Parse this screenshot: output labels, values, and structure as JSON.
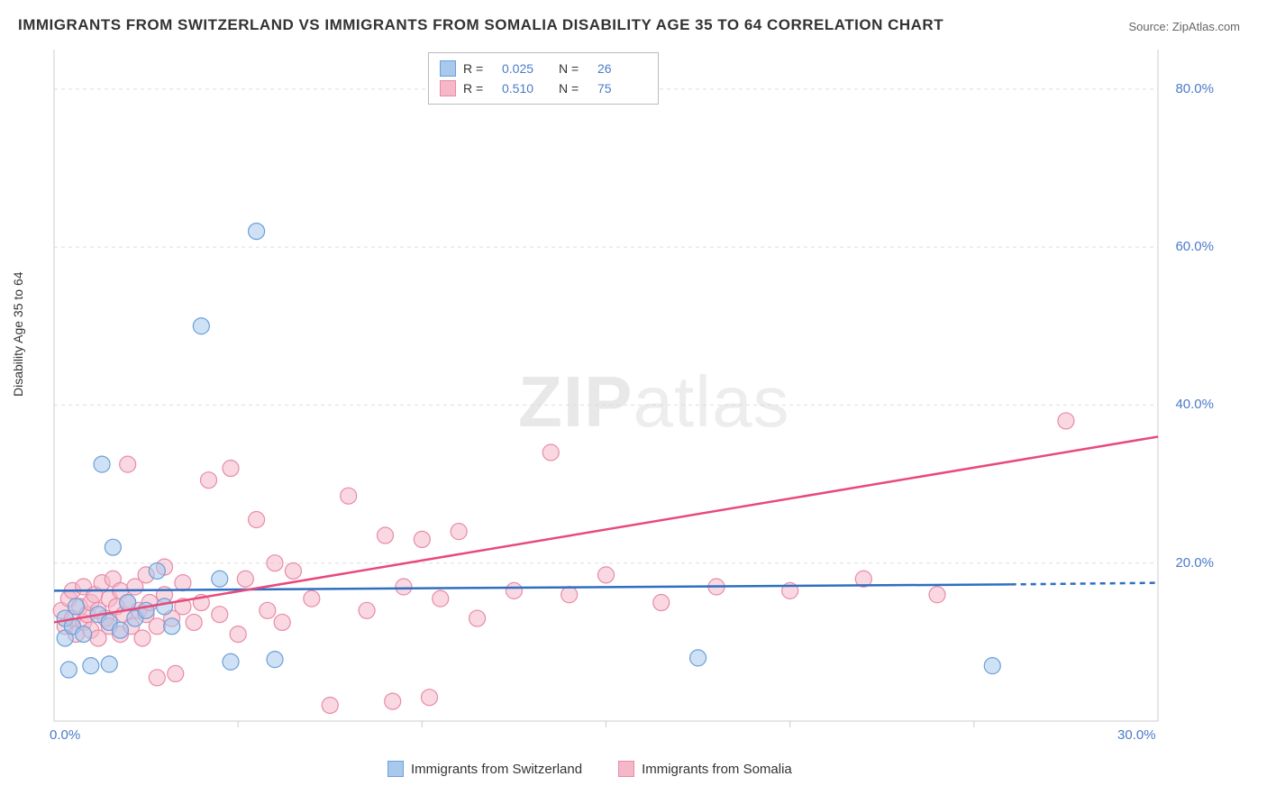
{
  "title": "IMMIGRANTS FROM SWITZERLAND VS IMMIGRANTS FROM SOMALIA DISABILITY AGE 35 TO 64 CORRELATION CHART",
  "source": "Source: ZipAtlas.com",
  "watermark": "ZIPatlas",
  "ylabel": "Disability Age 35 to 64",
  "chart": {
    "type": "scatter",
    "background_color": "#ffffff",
    "grid_color": "#dddddd",
    "axis_color": "#cccccc",
    "tick_color": "#4a7bc8",
    "xlim": [
      0,
      30
    ],
    "ylim": [
      0,
      85
    ],
    "xticks": [
      0.0,
      30.0
    ],
    "xtick_labels": [
      "0.0%",
      "30.0%"
    ],
    "xtick_minor": [
      5,
      10,
      15,
      20,
      25
    ],
    "yticks": [
      20.0,
      40.0,
      60.0,
      80.0
    ],
    "ytick_labels": [
      "20.0%",
      "40.0%",
      "60.0%",
      "80.0%"
    ],
    "marker_radius": 9,
    "marker_opacity": 0.55,
    "line_width": 2.5,
    "series": [
      {
        "name": "Immigrants from Switzerland",
        "color_fill": "#a8c8ec",
        "color_stroke": "#6b9fd8",
        "line_color": "#2f6fc2",
        "r": "0.025",
        "n": "26",
        "trend": {
          "x1": 0,
          "y1": 16.5,
          "x2": 26,
          "y2": 17.3,
          "dash_from": 26,
          "x3": 30,
          "y3": 17.5
        },
        "points": [
          [
            0.3,
            10.5
          ],
          [
            0.3,
            13.0
          ],
          [
            0.4,
            6.5
          ],
          [
            0.5,
            12.0
          ],
          [
            0.6,
            14.5
          ],
          [
            0.8,
            11.0
          ],
          [
            1.0,
            7.0
          ],
          [
            1.2,
            13.5
          ],
          [
            1.3,
            32.5
          ],
          [
            1.5,
            12.5
          ],
          [
            1.5,
            7.2
          ],
          [
            1.6,
            22.0
          ],
          [
            1.8,
            11.5
          ],
          [
            2.0,
            15.0
          ],
          [
            2.2,
            13.0
          ],
          [
            2.5,
            14.0
          ],
          [
            2.8,
            19.0
          ],
          [
            3.0,
            14.5
          ],
          [
            3.2,
            12.0
          ],
          [
            4.0,
            50.0
          ],
          [
            4.5,
            18.0
          ],
          [
            4.8,
            7.5
          ],
          [
            5.5,
            62.0
          ],
          [
            6.0,
            7.8
          ],
          [
            17.5,
            8.0
          ],
          [
            25.5,
            7.0
          ]
        ]
      },
      {
        "name": "Immigrants from Somalia",
        "color_fill": "#f4b8c8",
        "color_stroke": "#e88ba8",
        "line_color": "#e84a7a",
        "r": "0.510",
        "n": "75",
        "trend": {
          "x1": 0,
          "y1": 12.5,
          "x2": 30,
          "y2": 36.0
        },
        "points": [
          [
            0.2,
            14.0
          ],
          [
            0.3,
            12.0
          ],
          [
            0.4,
            15.5
          ],
          [
            0.5,
            13.0
          ],
          [
            0.5,
            16.5
          ],
          [
            0.6,
            11.0
          ],
          [
            0.7,
            14.5
          ],
          [
            0.8,
            12.5
          ],
          [
            0.8,
            17.0
          ],
          [
            0.9,
            13.5
          ],
          [
            1.0,
            15.0
          ],
          [
            1.0,
            11.5
          ],
          [
            1.1,
            16.0
          ],
          [
            1.2,
            14.0
          ],
          [
            1.2,
            10.5
          ],
          [
            1.3,
            17.5
          ],
          [
            1.4,
            13.0
          ],
          [
            1.5,
            15.5
          ],
          [
            1.5,
            12.0
          ],
          [
            1.6,
            18.0
          ],
          [
            1.7,
            14.5
          ],
          [
            1.8,
            11.0
          ],
          [
            1.8,
            16.5
          ],
          [
            1.9,
            13.5
          ],
          [
            2.0,
            15.0
          ],
          [
            2.0,
            32.5
          ],
          [
            2.1,
            12.0
          ],
          [
            2.2,
            17.0
          ],
          [
            2.3,
            14.0
          ],
          [
            2.4,
            10.5
          ],
          [
            2.5,
            18.5
          ],
          [
            2.5,
            13.5
          ],
          [
            2.6,
            15.0
          ],
          [
            2.8,
            12.0
          ],
          [
            2.8,
            5.5
          ],
          [
            3.0,
            16.0
          ],
          [
            3.0,
            19.5
          ],
          [
            3.2,
            13.0
          ],
          [
            3.3,
            6.0
          ],
          [
            3.5,
            14.5
          ],
          [
            3.5,
            17.5
          ],
          [
            3.8,
            12.5
          ],
          [
            4.0,
            15.0
          ],
          [
            4.2,
            30.5
          ],
          [
            4.5,
            13.5
          ],
          [
            4.8,
            32.0
          ],
          [
            5.0,
            11.0
          ],
          [
            5.2,
            18.0
          ],
          [
            5.5,
            25.5
          ],
          [
            5.8,
            14.0
          ],
          [
            6.0,
            20.0
          ],
          [
            6.2,
            12.5
          ],
          [
            6.5,
            19.0
          ],
          [
            7.0,
            15.5
          ],
          [
            7.5,
            2.0
          ],
          [
            8.0,
            28.5
          ],
          [
            8.5,
            14.0
          ],
          [
            9.0,
            23.5
          ],
          [
            9.2,
            2.5
          ],
          [
            9.5,
            17.0
          ],
          [
            10.0,
            23.0
          ],
          [
            10.2,
            3.0
          ],
          [
            10.5,
            15.5
          ],
          [
            11.0,
            24.0
          ],
          [
            11.5,
            13.0
          ],
          [
            12.5,
            16.5
          ],
          [
            13.5,
            34.0
          ],
          [
            14.0,
            16.0
          ],
          [
            15.0,
            18.5
          ],
          [
            16.5,
            15.0
          ],
          [
            18.0,
            17.0
          ],
          [
            20.0,
            16.5
          ],
          [
            22.0,
            18.0
          ],
          [
            24.0,
            16.0
          ],
          [
            27.5,
            38.0
          ]
        ]
      }
    ]
  },
  "legend_top": {
    "rows": [
      {
        "swatch_fill": "#a8c8ec",
        "swatch_stroke": "#6b9fd8",
        "r_label": "R =",
        "r": "0.025",
        "n_label": "N =",
        "n": "26"
      },
      {
        "swatch_fill": "#f4b8c8",
        "swatch_stroke": "#e88ba8",
        "r_label": "R =",
        "r": "0.510",
        "n_label": "N =",
        "n": "75"
      }
    ]
  },
  "legend_bottom": {
    "items": [
      {
        "swatch_fill": "#a8c8ec",
        "swatch_stroke": "#6b9fd8",
        "label": "Immigrants from Switzerland"
      },
      {
        "swatch_fill": "#f4b8c8",
        "swatch_stroke": "#e88ba8",
        "label": "Immigrants from Somalia"
      }
    ]
  }
}
